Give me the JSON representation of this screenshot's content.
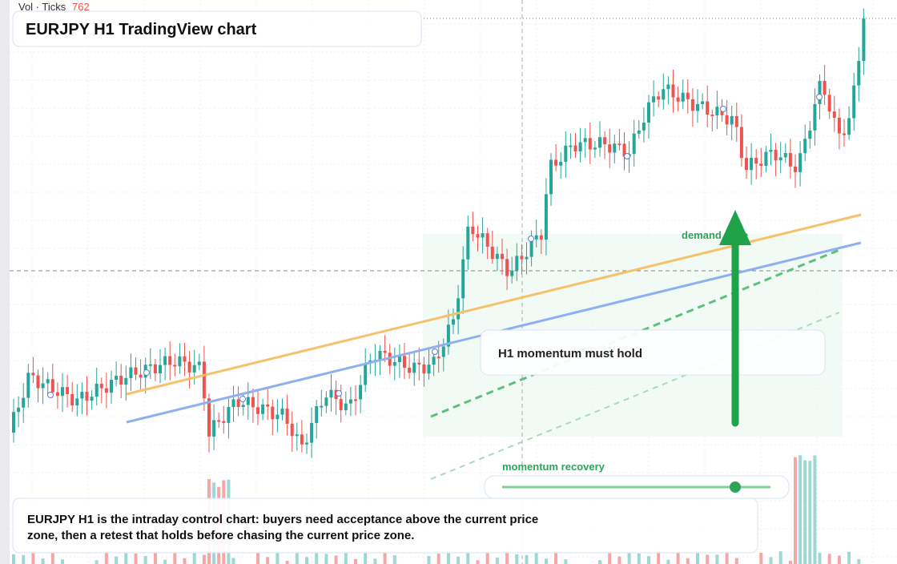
{
  "header": {
    "vol_label": "Vol · Ticks",
    "vol_value": "762",
    "title": "EURJPY H1 TradingView chart"
  },
  "annotations": {
    "zone": "demand zone",
    "callout": "H1 momentum must hold",
    "slider": "momentum recovery"
  },
  "note": {
    "line1": "EURJPY H1 is the intraday control chart: buyers need acceptance above the current price",
    "line2": "zone, then a retest that holds before chasing the current price zone."
  }
}
